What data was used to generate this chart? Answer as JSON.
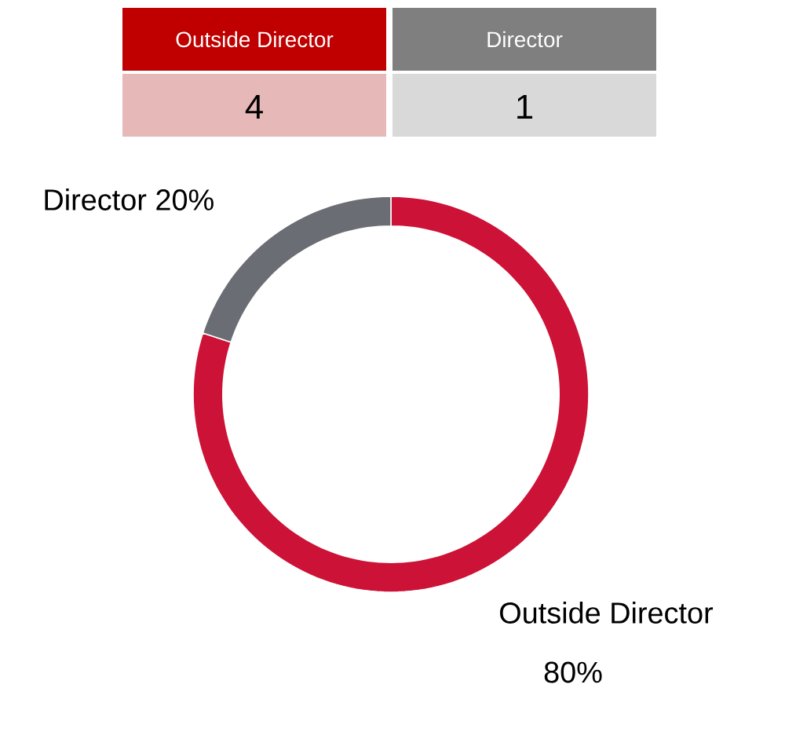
{
  "chart_data": {
    "type": "donut",
    "categories": [
      "Outside Director",
      "Director"
    ],
    "values": [
      80,
      20
    ],
    "annotations": [
      "4",
      "1"
    ],
    "value_labels": [
      "80%",
      "20%"
    ],
    "colors": [
      "#cc1236",
      "#6b6d75"
    ]
  }
}
